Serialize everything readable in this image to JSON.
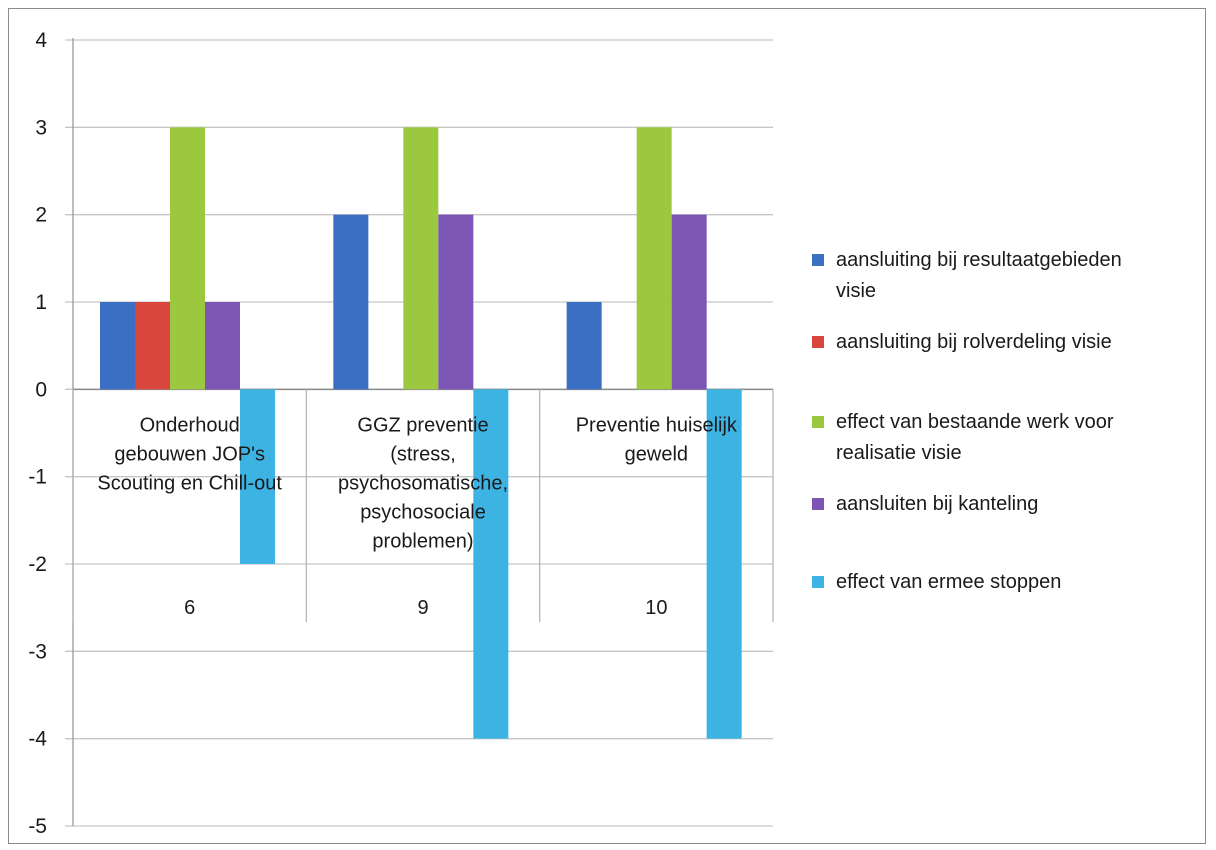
{
  "chart_data": {
    "type": "bar",
    "title": "",
    "xlabel": "",
    "ylabel": "",
    "ylim": [
      -5,
      4
    ],
    "yticks": [
      4,
      3,
      2,
      1,
      0,
      -1,
      -2,
      -3,
      -4,
      -5
    ],
    "grid": true,
    "legend_position": "right",
    "category_levels": [
      [
        "Onderhoud gebouwen JOP's Scouting en Chill-out",
        "GGZ preventie (stress, psychosomatische, psychosociale problemen)",
        "Preventie huiselijk geweld"
      ],
      [
        "6",
        "9",
        "10"
      ]
    ],
    "category_label_lines": [
      [
        "Onderhoud",
        "gebouwen JOP's",
        "Scouting en Chill-out"
      ],
      [
        "GGZ preventie",
        "(stress,",
        "psychosomatische,",
        "psychosociale",
        "problemen)"
      ],
      [
        "Preventie huiselijk",
        "geweld"
      ]
    ],
    "series": [
      {
        "name": "aansluiting bij resultaatgebieden visie",
        "legend_lines": [
          "aansluiting bij resultaatgebieden",
          "visie"
        ],
        "color": "#3a6fc4",
        "values": [
          1,
          2,
          1
        ]
      },
      {
        "name": "aansluiting bij rolverdeling visie",
        "legend_lines": [
          "aansluiting bij rolverdeling visie"
        ],
        "color": "#d8463d",
        "values": [
          1,
          0,
          0
        ]
      },
      {
        "name": "effect van bestaande werk voor realisatie visie",
        "legend_lines": [
          "effect van bestaande werk voor",
          "realisatie visie"
        ],
        "color": "#9cc840",
        "values": [
          3,
          3,
          3
        ]
      },
      {
        "name": "aansluiten bij kanteling",
        "legend_lines": [
          "aansluiten bij kanteling"
        ],
        "color": "#7c55b5",
        "values": [
          1,
          2,
          2
        ]
      },
      {
        "name": "effect van ermee stoppen",
        "legend_lines": [
          "effect van ermee stoppen"
        ],
        "color": "#3db3e3",
        "values": [
          -2,
          -4,
          -4
        ]
      }
    ]
  }
}
